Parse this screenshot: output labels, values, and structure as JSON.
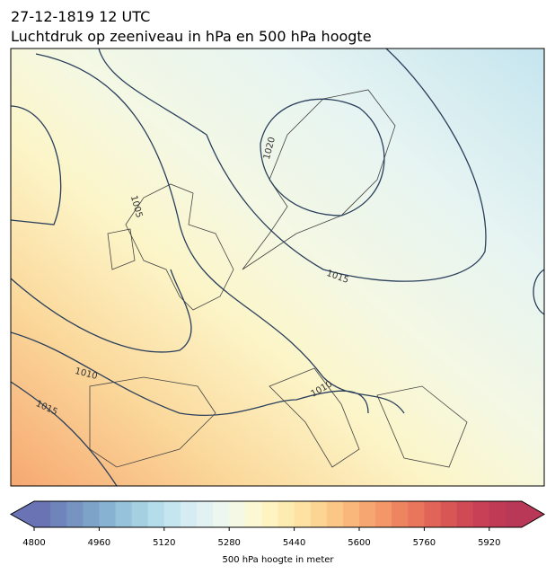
{
  "header": {
    "title": "27-12-1819 12 UTC",
    "subtitle": "Luchtdruk op zeeniveau in hPa en 500 hPa hoogte"
  },
  "map": {
    "contour_labels": [
      1020,
      1005,
      1015,
      1010,
      1010,
      1015
    ]
  },
  "colorbar": {
    "lim": [
      4800,
      6000
    ],
    "ticks": [
      4800,
      4960,
      5120,
      5280,
      5440,
      5600,
      5760,
      5920
    ],
    "label": "500 hPa hoogte in meter",
    "colors": [
      "#6a74b5",
      "#6f84bb",
      "#7693c2",
      "#7ea3c9",
      "#88b2d1",
      "#96c2da",
      "#a5d0e2",
      "#b5dcea",
      "#c5e5ef",
      "#d5ecf2",
      "#e2f2f3",
      "#edf6ef",
      "#f5f8e4",
      "#fbf8d3",
      "#fdf4c2",
      "#fdecb2",
      "#fde2a4",
      "#fcd595",
      "#fbc787",
      "#f9b77b",
      "#f6a771",
      "#f39768",
      "#ee8561",
      "#e8755c",
      "#e06558",
      "#d85755",
      "#cf4a54",
      "#c84055",
      "#c03a55",
      "#b93757"
    ]
  }
}
